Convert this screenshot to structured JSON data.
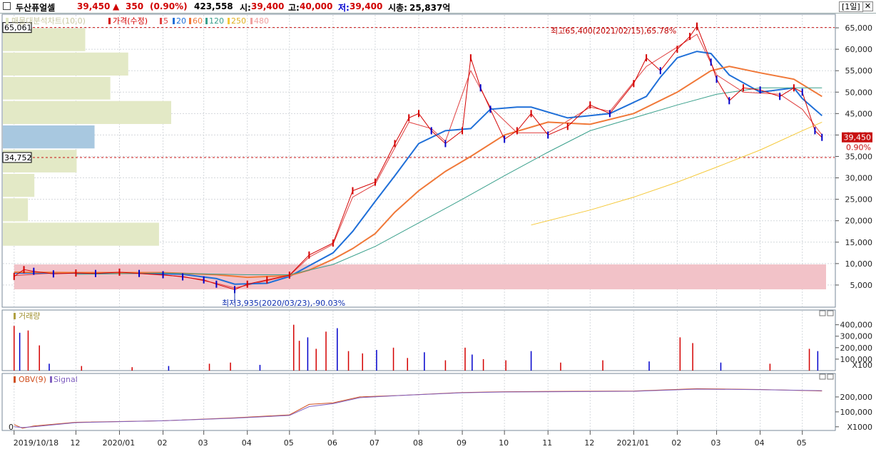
{
  "header": {
    "stock_name": "두산퓨얼셀",
    "price": "39,450",
    "change_arrow": "▲",
    "change": "350",
    "change_pct": "(0.90%)",
    "volume": "423,558",
    "open_label": "시:",
    "open": "39,400",
    "high_label": "고:",
    "high": "40,000",
    "low_label": "저:",
    "low": "39,400",
    "mcap_label": "시총:",
    "mcap": "25,837억",
    "interval": "[1일]",
    "close_glyph": "✕"
  },
  "colors": {
    "candle_up": "#d40000",
    "candle_down": "#0000cc",
    "ma5": "#e04040",
    "ma20": "#1f6fd8",
    "ma60": "#f07838",
    "ma120": "#3aa08c",
    "ma250": "#f5c93a",
    "vp_bar": "#e3e9c6",
    "vp_bar_current": "#a8c8e0",
    "highlight_band": "#f2c2c8",
    "obv": "#d05020",
    "signal": "#8060c0"
  },
  "chart_data": [
    {
      "type": "line",
      "title": "",
      "legend": {
        "volume_profile": "매물대분석차트(10,0)",
        "price": "가격(수정)",
        "ma_periods": [
          "5",
          "20",
          "60",
          "120",
          "250",
          "480"
        ]
      },
      "x_ticks": [
        "2019/10/18",
        "12",
        "2020/01",
        "02",
        "03",
        "04",
        "05",
        "06",
        "07",
        "08",
        "09",
        "10",
        "11",
        "12",
        "2021/01",
        "02",
        "03",
        "04",
        "05"
      ],
      "x_tick_dates": [
        "2019-10-18",
        "2019-12-01",
        "2020-01-01",
        "2020-02-01",
        "2020-03-01",
        "2020-04-01",
        "2020-05-01",
        "2020-06-01",
        "2020-07-01",
        "2020-08-01",
        "2020-09-01",
        "2020-10-01",
        "2020-11-01",
        "2020-12-01",
        "2021-01-01",
        "2021-02-01",
        "2021-03-01",
        "2021-04-01",
        "2021-05-01"
      ],
      "y_ticks": [
        "65,000",
        "60,000",
        "55,000",
        "50,000",
        "45,000",
        "40,000",
        "35,000",
        "30,000",
        "25,000",
        "20,000",
        "15,000",
        "10,000",
        "5,000"
      ],
      "y_tick_values": [
        65000,
        60000,
        55000,
        50000,
        45000,
        40000,
        35000,
        30000,
        25000,
        20000,
        15000,
        10000,
        5000
      ],
      "ylim": [
        0,
        68000
      ],
      "grid": true,
      "price_series": {
        "name": "가격(수정)",
        "x": [
          "2019-10-18",
          "2019-10-25",
          "2019-11-01",
          "2019-11-15",
          "2019-12-01",
          "2019-12-15",
          "2020-01-01",
          "2020-01-15",
          "2020-02-01",
          "2020-02-15",
          "2020-03-01",
          "2020-03-10",
          "2020-03-23",
          "2020-04-01",
          "2020-04-15",
          "2020-05-01",
          "2020-05-15",
          "2020-06-01",
          "2020-06-15",
          "2020-07-01",
          "2020-07-15",
          "2020-07-25",
          "2020-08-01",
          "2020-08-10",
          "2020-08-20",
          "2020-09-01",
          "2020-09-07",
          "2020-09-14",
          "2020-09-21",
          "2020-10-01",
          "2020-10-10",
          "2020-10-20",
          "2020-11-01",
          "2020-11-15",
          "2020-12-01",
          "2020-12-15",
          "2021-01-01",
          "2021-01-10",
          "2021-01-20",
          "2021-02-01",
          "2021-02-10",
          "2021-02-15",
          "2021-02-25",
          "2021-03-01",
          "2021-03-10",
          "2021-03-20",
          "2021-04-01",
          "2021-04-15",
          "2021-04-25",
          "2021-05-01",
          "2021-05-10",
          "2021-05-15"
        ],
        "y": [
          7000,
          8600,
          8200,
          7600,
          7800,
          7700,
          8000,
          7700,
          7400,
          6900,
          6200,
          5200,
          3935,
          5200,
          6200,
          7300,
          12000,
          14800,
          27000,
          29000,
          38000,
          44000,
          45000,
          41000,
          38000,
          41000,
          58000,
          51000,
          46000,
          39000,
          41000,
          45000,
          40000,
          42000,
          47000,
          45000,
          52000,
          58000,
          55000,
          60000,
          63000,
          65400,
          57000,
          53000,
          48000,
          51000,
          50500,
          49000,
          51000,
          50000,
          41000,
          39450
        ]
      },
      "highs": {
        "label": "최고65,400(2021/02/15),65.78%",
        "value": 65400,
        "date": "2021-02-15"
      },
      "lows": {
        "label": "최저3,935(2020/03/23),-90.03%",
        "value": 3935,
        "date": "2020-03-23"
      },
      "level_lines": [
        {
          "label": "65,061",
          "value": 65061
        },
        {
          "label": "34,752",
          "value": 34752
        }
      ],
      "highlight_band": {
        "from": 4000,
        "to": 9800,
        "x_from": "2019-10-18"
      },
      "current_price_tag": {
        "price": "39,450",
        "pct": "0.90%"
      },
      "series": [
        {
          "name": "5",
          "x": [
            "2019-10-18",
            "2019-11-15",
            "2019-12-15",
            "2020-01-15",
            "2020-02-15",
            "2020-03-10",
            "2020-03-23",
            "2020-04-15",
            "2020-05-01",
            "2020-05-15",
            "2020-06-01",
            "2020-06-15",
            "2020-07-01",
            "2020-07-15",
            "2020-07-25",
            "2020-08-10",
            "2020-08-20",
            "2020-09-07",
            "2020-09-21",
            "2020-10-10",
            "2020-11-01",
            "2020-12-01",
            "2020-12-15",
            "2021-01-10",
            "2021-02-01",
            "2021-02-15",
            "2021-03-01",
            "2021-03-20",
            "2021-04-15",
            "2021-05-01",
            "2021-05-15"
          ],
          "y": [
            7200,
            7800,
            7700,
            7700,
            7000,
            5400,
            4300,
            6000,
            7200,
            11500,
            14500,
            25500,
            28500,
            37000,
            43000,
            41500,
            38500,
            55000,
            46500,
            40500,
            40500,
            46500,
            45500,
            56000,
            60500,
            63500,
            54000,
            50000,
            49500,
            46000,
            40000
          ]
        },
        {
          "name": "20",
          "x": [
            "2019-10-18",
            "2019-12-01",
            "2020-01-15",
            "2020-02-15",
            "2020-03-10",
            "2020-03-23",
            "2020-04-15",
            "2020-05-01",
            "2020-05-15",
            "2020-06-01",
            "2020-06-15",
            "2020-07-01",
            "2020-07-15",
            "2020-08-01",
            "2020-08-20",
            "2020-09-07",
            "2020-09-21",
            "2020-10-10",
            "2020-10-20",
            "2020-11-15",
            "2020-12-01",
            "2020-12-15",
            "2021-01-10",
            "2021-01-20",
            "2021-02-01",
            "2021-02-15",
            "2021-02-25",
            "2021-03-10",
            "2021-04-01",
            "2021-04-25",
            "2021-05-01",
            "2021-05-15"
          ],
          "y": [
            7800,
            7800,
            7800,
            7500,
            6500,
            5200,
            5400,
            7000,
            9500,
            12500,
            17500,
            24500,
            30500,
            38000,
            41000,
            41500,
            46000,
            46500,
            46500,
            44000,
            44500,
            45000,
            49000,
            53500,
            58000,
            59500,
            59000,
            54000,
            50000,
            51000,
            48500,
            44500
          ]
        },
        {
          "name": "60",
          "x": [
            "2019-10-18",
            "2019-12-01",
            "2020-02-01",
            "2020-03-10",
            "2020-04-01",
            "2020-05-01",
            "2020-05-15",
            "2020-06-01",
            "2020-06-15",
            "2020-07-01",
            "2020-07-15",
            "2020-08-01",
            "2020-08-20",
            "2020-09-07",
            "2020-10-01",
            "2020-11-01",
            "2020-12-01",
            "2021-01-01",
            "2021-02-01",
            "2021-02-25",
            "2021-03-10",
            "2021-04-01",
            "2021-04-25",
            "2021-05-15"
          ],
          "y": [
            8000,
            7900,
            7900,
            7400,
            6800,
            7200,
            8500,
            11000,
            13500,
            17000,
            22000,
            27000,
            31500,
            35000,
            40000,
            43000,
            42500,
            45000,
            50000,
            55000,
            56000,
            54500,
            53000,
            49000
          ]
        },
        {
          "name": "120",
          "x": [
            "2019-12-01",
            "2020-02-01",
            "2020-04-01",
            "2020-05-01",
            "2020-06-01",
            "2020-07-01",
            "2020-08-01",
            "2020-09-01",
            "2020-10-01",
            "2020-11-01",
            "2020-12-01",
            "2021-01-01",
            "2021-02-01",
            "2021-03-01",
            "2021-04-01",
            "2021-05-15"
          ],
          "y": [
            7500,
            7800,
            7400,
            7400,
            9800,
            14000,
            19500,
            25000,
            30500,
            36000,
            41000,
            44000,
            47000,
            49500,
            51000,
            51000
          ]
        },
        {
          "name": "250",
          "x": [
            "2020-10-20",
            "2020-12-01",
            "2021-01-01",
            "2021-02-01",
            "2021-03-01",
            "2021-04-01",
            "2021-05-01",
            "2021-05-15"
          ],
          "y": [
            19000,
            22500,
            25500,
            29000,
            32500,
            36500,
            41000,
            43000
          ]
        }
      ]
    },
    {
      "type": "bar",
      "title": "거래량",
      "y_ticks": [
        "400,000",
        "300,000",
        "200,000",
        "100,000",
        "X100"
      ],
      "y_tick_values": [
        4000,
        3000,
        2000,
        1000
      ],
      "unit": "X100",
      "ylim": [
        0,
        4600
      ],
      "x": [
        "2019-10-18",
        "2019-10-22",
        "2019-10-28",
        "2019-11-05",
        "2019-11-12",
        "2019-12-05",
        "2020-01-10",
        "2020-02-05",
        "2020-03-05",
        "2020-03-20",
        "2020-04-10",
        "2020-05-04",
        "2020-05-08",
        "2020-05-14",
        "2020-05-20",
        "2020-05-27",
        "2020-06-04",
        "2020-06-12",
        "2020-06-22",
        "2020-07-02",
        "2020-07-14",
        "2020-07-24",
        "2020-08-05",
        "2020-08-20",
        "2020-09-03",
        "2020-09-08",
        "2020-09-16",
        "2020-10-02",
        "2020-10-20",
        "2020-11-10",
        "2020-12-10",
        "2021-01-12",
        "2021-02-03",
        "2021-02-12",
        "2021-03-04",
        "2021-04-08",
        "2021-05-06",
        "2021-05-12"
      ],
      "values": [
        3900,
        3300,
        3500,
        2200,
        600,
        400,
        300,
        400,
        600,
        700,
        500,
        4000,
        2600,
        2900,
        1900,
        3400,
        3700,
        1700,
        1500,
        1800,
        2000,
        1100,
        1600,
        900,
        2000,
        1400,
        1000,
        900,
        1700,
        700,
        900,
        800,
        2900,
        2400,
        700,
        600,
        1900,
        1700
      ]
    },
    {
      "type": "line",
      "legend": [
        "OBV(9)",
        "Signal"
      ],
      "y_ticks": [
        "200,000",
        "100,000",
        "0",
        "X1000"
      ],
      "y_tick_values": [
        200000,
        100000,
        0
      ],
      "unit": "X1000",
      "ylim": [
        -20000,
        300000
      ],
      "series": [
        {
          "name": "OBV(9)",
          "x": [
            "2019-10-18",
            "2019-10-24",
            "2019-11-01",
            "2019-12-01",
            "2020-02-01",
            "2020-03-23",
            "2020-05-01",
            "2020-05-15",
            "2020-06-01",
            "2020-06-20",
            "2020-07-20",
            "2020-09-01",
            "2020-10-01",
            "2021-01-01",
            "2021-02-15",
            "2021-04-01",
            "2021-05-15"
          ],
          "y": [
            15000,
            -10000,
            5000,
            30000,
            40000,
            60000,
            80000,
            150000,
            160000,
            200000,
            210000,
            230000,
            235000,
            240000,
            255000,
            250000,
            240000
          ]
        },
        {
          "name": "Signal",
          "x": [
            "2019-10-18",
            "2019-10-24",
            "2019-11-01",
            "2019-12-01",
            "2020-02-01",
            "2020-03-23",
            "2020-05-01",
            "2020-05-15",
            "2020-06-01",
            "2020-06-20",
            "2020-07-20",
            "2020-09-01",
            "2020-10-01",
            "2021-01-01",
            "2021-02-15",
            "2021-04-01",
            "2021-05-15"
          ],
          "y": [
            0,
            -5000,
            0,
            28000,
            40000,
            58000,
            76000,
            135000,
            155000,
            195000,
            210000,
            228000,
            233000,
            238000,
            252000,
            249000,
            242000
          ]
        }
      ]
    }
  ],
  "volume_profile": {
    "label": "매물대분석차트(10,0)",
    "current_bucket": 5,
    "buckets": [
      {
        "from": 59400,
        "to": 65061,
        "volume": 115
      },
      {
        "from": 53700,
        "to": 59400,
        "volume": 175
      },
      {
        "from": 48100,
        "to": 53700,
        "volume": 150
      },
      {
        "from": 42400,
        "to": 48100,
        "volume": 235
      },
      {
        "from": 36700,
        "to": 42400,
        "volume": 128
      },
      {
        "from": 31100,
        "to": 36700,
        "volume": 103
      },
      {
        "from": 25400,
        "to": 31100,
        "volume": 44
      },
      {
        "from": 19700,
        "to": 25400,
        "volume": 35
      },
      {
        "from": 14000,
        "to": 19700,
        "volume": 218
      },
      {
        "from": 8300,
        "to": 14000,
        "volume": 0
      }
    ]
  }
}
